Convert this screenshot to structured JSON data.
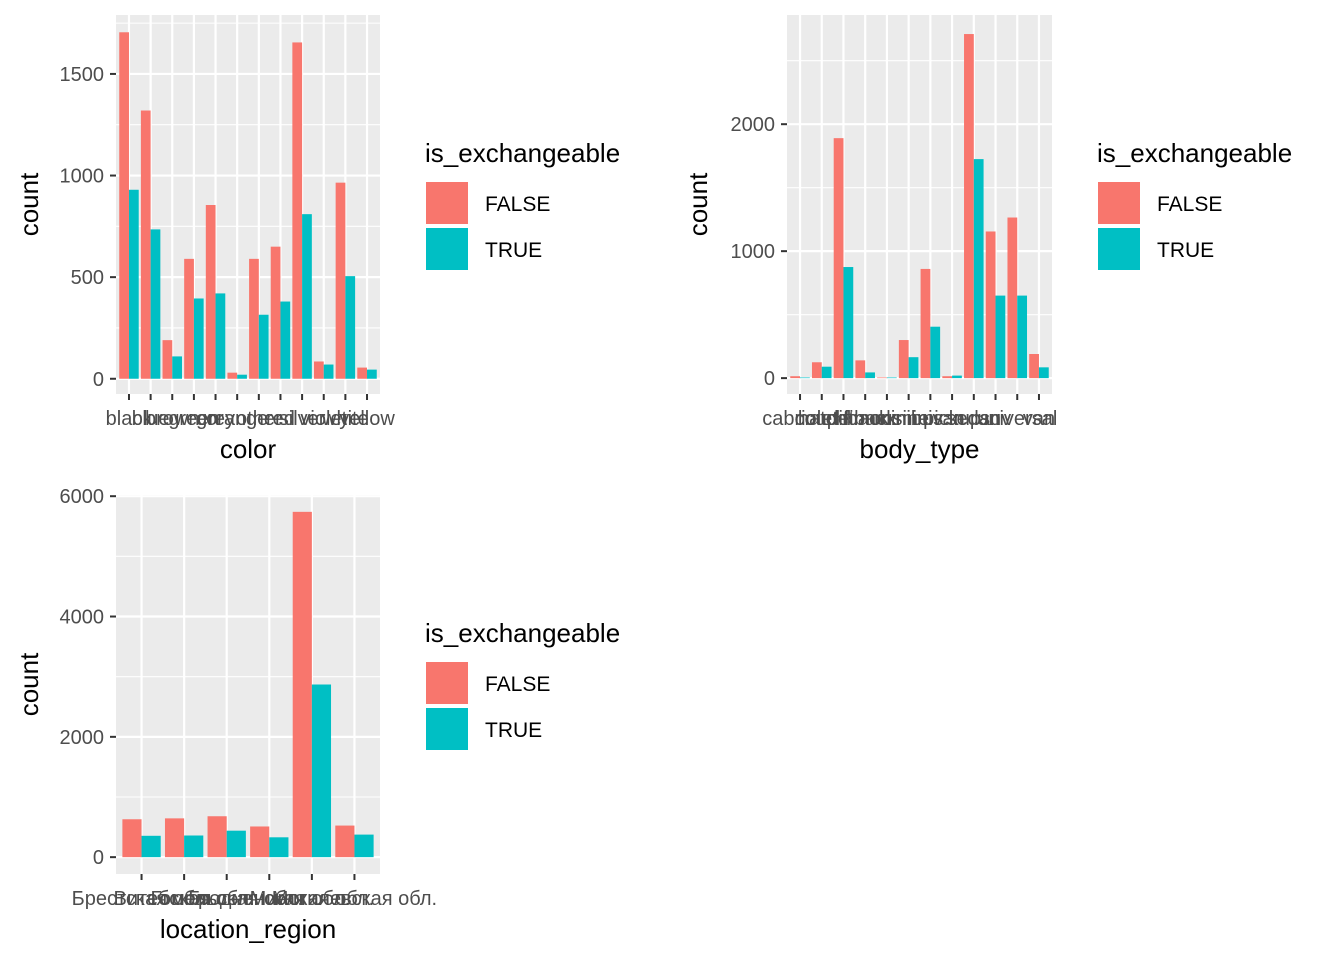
{
  "legend": {
    "title": "is_exchangeable",
    "items": [
      {
        "label": "FALSE",
        "color": "#F8766D"
      },
      {
        "label": "TRUE",
        "color": "#00BFC4"
      }
    ]
  },
  "colors": {
    "panel_background": "#EBEBEB",
    "grid_major": "#FFFFFF",
    "tick_text": "#4D4D4D",
    "tick_mark": "#333333"
  },
  "chart_data": [
    {
      "type": "bar",
      "xlabel": "color",
      "ylabel": "count",
      "categories": [
        "black",
        "blue",
        "brown",
        "green",
        "grey",
        "orange",
        "other",
        "red",
        "silver",
        "violet",
        "white",
        "yellow"
      ],
      "series": [
        {
          "name": "FALSE",
          "values": [
            1705,
            1320,
            190,
            590,
            855,
            30,
            590,
            650,
            1655,
            85,
            965,
            55
          ]
        },
        {
          "name": "TRUE",
          "values": [
            930,
            735,
            110,
            395,
            420,
            20,
            315,
            380,
            810,
            70,
            505,
            45
          ]
        }
      ],
      "ylim": [
        -75,
        1790
      ],
      "yticks": [
        0,
        500,
        1000,
        1500
      ],
      "ytick_labels": [
        "0",
        "500",
        "1000",
        "1500"
      ],
      "grid": true,
      "legend_position": "right"
    },
    {
      "type": "bar",
      "xlabel": "body_type",
      "ylabel": "count",
      "categories": [
        "cabriolet",
        "coupe",
        "hatchback",
        "liftback",
        "limousine",
        "minibus",
        "minivan",
        "pickup",
        "sedan",
        "suv",
        "universal",
        "van"
      ],
      "series": [
        {
          "name": "FALSE",
          "values": [
            15,
            125,
            1890,
            140,
            5,
            300,
            860,
            15,
            2710,
            1155,
            1265,
            190
          ]
        },
        {
          "name": "TRUE",
          "values": [
            5,
            90,
            875,
            45,
            5,
            165,
            405,
            20,
            1725,
            650,
            650,
            85
          ]
        }
      ],
      "ylim": [
        -125,
        2860
      ],
      "yticks": [
        0,
        1000,
        2000
      ],
      "ytick_labels": [
        "0",
        "1000",
        "2000"
      ],
      "grid": true,
      "legend_position": "right"
    },
    {
      "type": "bar",
      "xlabel": "location_region",
      "ylabel": "count",
      "categories": [
        "Брестская обл.",
        "Витебская обл.",
        "Гомельская обл.",
        "Гродненская обл.",
        "Минская обл.",
        "Могилевская обл."
      ],
      "series": [
        {
          "name": "FALSE",
          "values": [
            630,
            645,
            680,
            510,
            5740,
            525
          ]
        },
        {
          "name": "TRUE",
          "values": [
            355,
            360,
            440,
            330,
            2870,
            375
          ]
        }
      ],
      "ylim": [
        -280,
        6020
      ],
      "yticks": [
        0,
        2000,
        4000,
        6000
      ],
      "ytick_labels": [
        "0",
        "2000",
        "4000",
        "6000"
      ],
      "grid": true,
      "legend_position": "right"
    }
  ]
}
